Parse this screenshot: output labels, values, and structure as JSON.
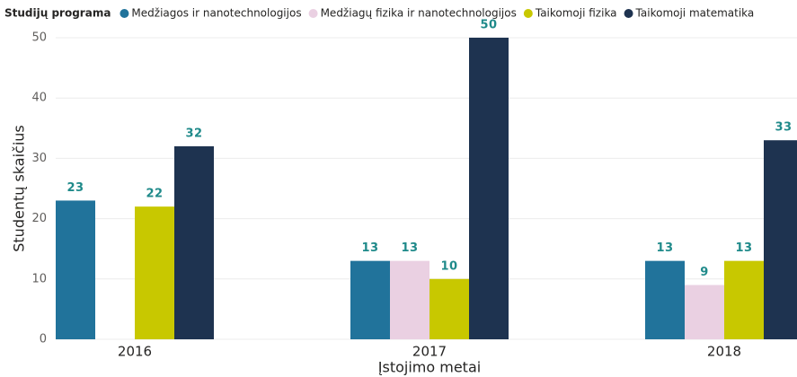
{
  "chart_data": {
    "type": "bar",
    "legend_title": "Studijų programa",
    "x_label": "Įstojimo metai",
    "y_label": "Studentų skaičius",
    "categories": [
      "2016",
      "2017",
      "2018"
    ],
    "series": [
      {
        "name": "Medžiagos ir nanotechnologijos",
        "color": "#21739b",
        "values": [
          23,
          13,
          13
        ]
      },
      {
        "name": "Medžiagų fizika ir nanotechnologijos",
        "color": "#ead0e2",
        "values": [
          null,
          13,
          9
        ]
      },
      {
        "name": "Taikomoji fizika",
        "color": "#c8c800",
        "values": [
          22,
          10,
          13
        ]
      },
      {
        "name": "Taikomoji matematika",
        "color": "#1e3350",
        "values": [
          32,
          50,
          33
        ]
      }
    ],
    "ylim": [
      0,
      50
    ],
    "yticks": [
      0,
      10,
      20,
      30,
      40,
      50
    ],
    "grid": true,
    "legend": "top-left"
  }
}
